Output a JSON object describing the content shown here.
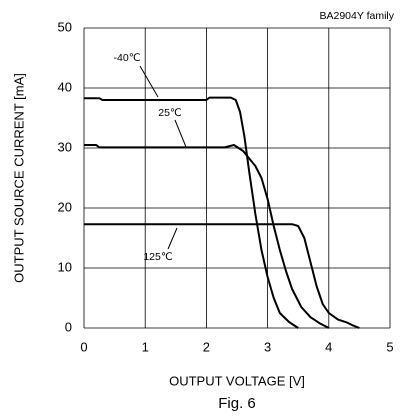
{
  "chart_data": {
    "type": "line",
    "subtitle": "BA2904Y family",
    "x_label": "OUTPUT VOLTAGE [V]",
    "y_label": "OUTPUT SOURCE CURRENT [mA]",
    "caption": "Fig. 6",
    "xlim": [
      0,
      5
    ],
    "xticks": [
      0,
      1,
      2,
      3,
      4,
      5
    ],
    "ylim": [
      0,
      50
    ],
    "yticks": [
      0,
      10,
      20,
      30,
      40,
      50
    ],
    "grid": true,
    "series": [
      {
        "name": "-40℃",
        "color": "#000000",
        "x": [
          0,
          0.25,
          0.3,
          2.0,
          2.05,
          2.4,
          2.48,
          2.55,
          2.62,
          2.7,
          2.8,
          2.9,
          3.0,
          3.1,
          3.2,
          3.35,
          3.5
        ],
        "values": [
          38.3,
          38.3,
          38,
          38,
          38.4,
          38.4,
          38,
          36,
          32,
          26,
          19,
          13,
          8.5,
          5,
          2.5,
          1,
          0
        ]
      },
      {
        "name": "25℃",
        "color": "#000000",
        "x": [
          0,
          0.2,
          0.25,
          2.3,
          2.45,
          2.6,
          2.8,
          2.9,
          3.0,
          3.1,
          3.2,
          3.3,
          3.4,
          3.55,
          3.7,
          3.85,
          4.0
        ],
        "values": [
          30.5,
          30.5,
          30.1,
          30.1,
          30.5,
          29.5,
          27,
          25,
          21.5,
          17,
          13,
          9.5,
          6.5,
          3.5,
          1.8,
          0.8,
          0
        ]
      },
      {
        "name": "125℃",
        "color": "#000000",
        "x": [
          0,
          3.4,
          3.5,
          3.6,
          3.7,
          3.8,
          3.9,
          4.0,
          4.15,
          4.3,
          4.4,
          4.5
        ],
        "values": [
          17.3,
          17.3,
          17,
          15,
          11,
          7,
          4,
          2.5,
          1.4,
          0.9,
          0.4,
          0
        ]
      }
    ]
  }
}
